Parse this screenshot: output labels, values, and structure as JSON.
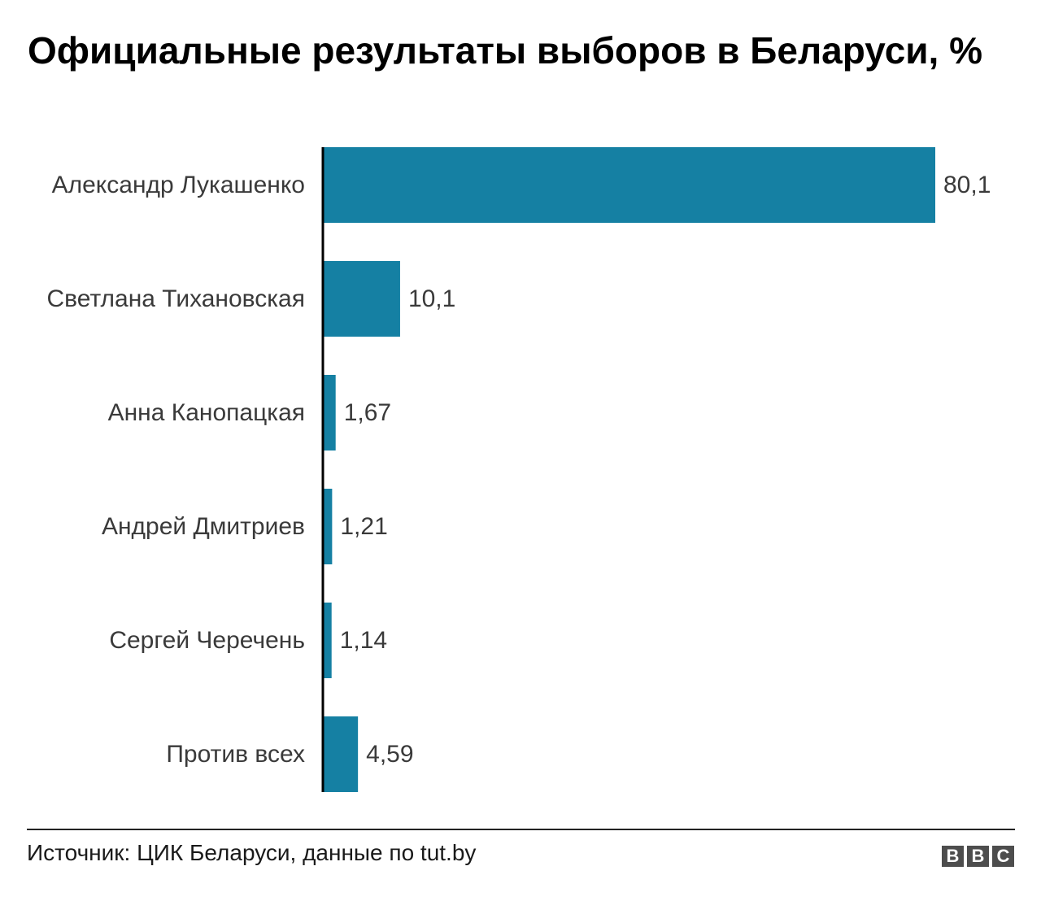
{
  "title": "Официальные результаты выборов в Беларуси, %",
  "chart_data": {
    "type": "bar",
    "orientation": "horizontal",
    "title": "Официальные результаты выборов в Беларуси, %",
    "xlabel": "",
    "ylabel": "",
    "categories": [
      "Александр Лукашенко",
      "Светлана Тихановская",
      "Анна Канопацкая",
      "Андрей Дмитриев",
      "Сергей Черечень",
      "Против всех"
    ],
    "values": [
      80.1,
      10.1,
      1.67,
      1.21,
      1.14,
      4.59
    ],
    "value_labels": [
      "80,1",
      "10,1",
      "1,67",
      "1,21",
      "1,14",
      "4,59"
    ],
    "xlim": [
      0,
      80.1
    ],
    "grid": false,
    "legend": "none",
    "bar_color": "#1580a3"
  },
  "footer": {
    "source": "Источник: ЦИК Беларуси, данные по tut.by",
    "logo_letters": [
      "B",
      "B",
      "C"
    ]
  }
}
